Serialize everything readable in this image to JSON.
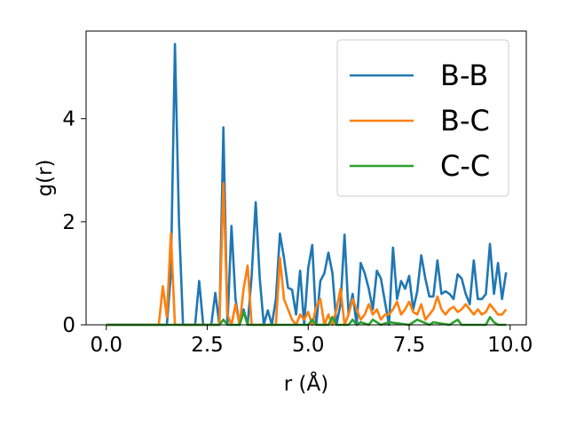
{
  "chart_data": {
    "type": "line",
    "title": "",
    "xlabel": "r (Å)",
    "ylabel": "g(r)",
    "xlim": [
      -0.5,
      10.4
    ],
    "ylim": [
      0,
      5.7
    ],
    "xticks": [
      0.0,
      2.5,
      5.0,
      7.5,
      10.0
    ],
    "xtick_labels": [
      "0.0",
      "2.5",
      "5.0",
      "7.5",
      "10.0"
    ],
    "yticks": [
      0,
      2,
      4
    ],
    "ytick_labels": [
      "0",
      "2",
      "4"
    ],
    "grid": false,
    "legend_position": "top-right",
    "series": [
      {
        "name": "B-B",
        "color": "#1f77b4",
        "x": [
          0.0,
          0.5,
          1.0,
          1.5,
          1.6,
          1.7,
          1.8,
          1.9,
          2.0,
          2.1,
          2.2,
          2.3,
          2.4,
          2.5,
          2.6,
          2.7,
          2.8,
          2.9,
          3.0,
          3.1,
          3.2,
          3.3,
          3.4,
          3.5,
          3.6,
          3.7,
          3.8,
          3.9,
          4.0,
          4.1,
          4.2,
          4.3,
          4.4,
          4.5,
          4.6,
          4.7,
          4.8,
          4.9,
          5.0,
          5.1,
          5.2,
          5.3,
          5.4,
          5.5,
          5.6,
          5.7,
          5.8,
          5.9,
          6.0,
          6.1,
          6.2,
          6.3,
          6.4,
          6.5,
          6.6,
          6.7,
          6.8,
          6.9,
          7.0,
          7.1,
          7.2,
          7.3,
          7.4,
          7.5,
          7.6,
          7.7,
          7.8,
          7.9,
          8.0,
          8.1,
          8.2,
          8.3,
          8.4,
          8.5,
          8.6,
          8.7,
          8.8,
          8.9,
          9.0,
          9.1,
          9.2,
          9.3,
          9.4,
          9.5,
          9.6,
          9.7,
          9.8,
          9.9
        ],
        "y": [
          0,
          0,
          0,
          0,
          1.0,
          5.45,
          2.0,
          0,
          0,
          0,
          0,
          0.85,
          0,
          0,
          0,
          0.62,
          0,
          3.83,
          0,
          1.92,
          0.5,
          0,
          0.3,
          0,
          0.95,
          2.38,
          0.9,
          0,
          0.28,
          0,
          0.5,
          1.77,
          1.3,
          0.72,
          0.68,
          0.2,
          1.05,
          0,
          1.1,
          1.55,
          0,
          0.85,
          1.0,
          1.4,
          1.0,
          0,
          0.4,
          1.75,
          0.2,
          0.6,
          0,
          1.2,
          1.0,
          0.7,
          0.3,
          1.05,
          0.9,
          0.45,
          0,
          1.5,
          0.5,
          0.85,
          0.7,
          0.95,
          0.3,
          0.65,
          1.35,
          0.9,
          0.55,
          0.55,
          1.25,
          0.6,
          0.65,
          0.6,
          0.5,
          0.98,
          0.9,
          0.6,
          0.4,
          1.25,
          0.5,
          0.5,
          0.6,
          1.57,
          0.6,
          1.2,
          0.5,
          1.02
        ]
      },
      {
        "name": "B-C",
        "color": "#ff7f0e",
        "x": [
          0.0,
          0.5,
          1.0,
          1.2,
          1.3,
          1.4,
          1.5,
          1.6,
          1.7,
          1.8,
          2.0,
          2.5,
          2.8,
          2.9,
          3.0,
          3.1,
          3.2,
          3.3,
          3.4,
          3.5,
          3.6,
          3.7,
          3.8,
          4.0,
          4.2,
          4.3,
          4.4,
          4.5,
          4.6,
          4.7,
          4.8,
          4.9,
          5.0,
          5.1,
          5.2,
          5.3,
          5.4,
          5.5,
          5.6,
          5.7,
          5.8,
          5.9,
          6.0,
          6.1,
          6.2,
          6.3,
          6.4,
          6.5,
          6.6,
          6.7,
          6.8,
          6.9,
          7.0,
          7.1,
          7.2,
          7.3,
          7.4,
          7.5,
          7.6,
          7.7,
          7.8,
          7.9,
          8.0,
          8.1,
          8.2,
          8.3,
          8.4,
          8.5,
          8.6,
          8.7,
          8.8,
          8.9,
          9.0,
          9.1,
          9.2,
          9.3,
          9.4,
          9.5,
          9.6,
          9.7,
          9.8,
          9.9
        ],
        "y": [
          0,
          0,
          0,
          0,
          0,
          0.75,
          0.15,
          1.77,
          0,
          0,
          0,
          0,
          0,
          2.75,
          0.2,
          0,
          0.4,
          0,
          0.7,
          1.15,
          0,
          0,
          0,
          0,
          0,
          1.3,
          0.5,
          0.3,
          0.1,
          0,
          0.2,
          0.1,
          0.25,
          0,
          0.35,
          0.5,
          0,
          0.2,
          0,
          0.3,
          0.7,
          0,
          0.2,
          0.5,
          0.3,
          0.1,
          0.2,
          0.4,
          0.2,
          0.3,
          0.1,
          0.2,
          0.2,
          0.3,
          0.45,
          0.2,
          0.3,
          0.45,
          0.25,
          0.2,
          0.4,
          0.1,
          0.2,
          0.3,
          0.55,
          0.3,
          0.2,
          0.3,
          0.35,
          0.25,
          0.3,
          0.4,
          0.3,
          0.2,
          0.3,
          0.2,
          0.25,
          0.4,
          0.3,
          0.2,
          0.2,
          0.3
        ]
      },
      {
        "name": "C-C",
        "color": "#2ca02c",
        "x": [
          0.0,
          0.5,
          1.0,
          1.5,
          2.0,
          2.5,
          2.8,
          2.9,
          3.0,
          3.2,
          3.3,
          3.4,
          3.5,
          3.6,
          4.0,
          4.5,
          5.0,
          5.1,
          5.2,
          5.5,
          5.6,
          5.7,
          5.8,
          6.0,
          6.1,
          6.2,
          6.3,
          6.5,
          6.6,
          6.8,
          7.0,
          7.5,
          7.6,
          7.7,
          8.0,
          8.1,
          8.5,
          8.6,
          8.7,
          8.8,
          9.0,
          9.4,
          9.5,
          9.6,
          9.7,
          9.9
        ],
        "y": [
          0,
          0,
          0,
          0,
          0,
          0,
          0,
          0.1,
          0,
          0,
          0,
          0.25,
          0,
          0,
          0,
          0,
          0,
          0.1,
          0,
          0,
          0.15,
          0,
          0,
          0,
          0.1,
          0,
          0.05,
          0,
          0.1,
          0,
          0.05,
          0,
          0.05,
          0.1,
          0,
          0.05,
          0,
          0.05,
          0.1,
          0,
          0,
          0,
          0.15,
          0.05,
          0,
          0
        ]
      }
    ]
  }
}
